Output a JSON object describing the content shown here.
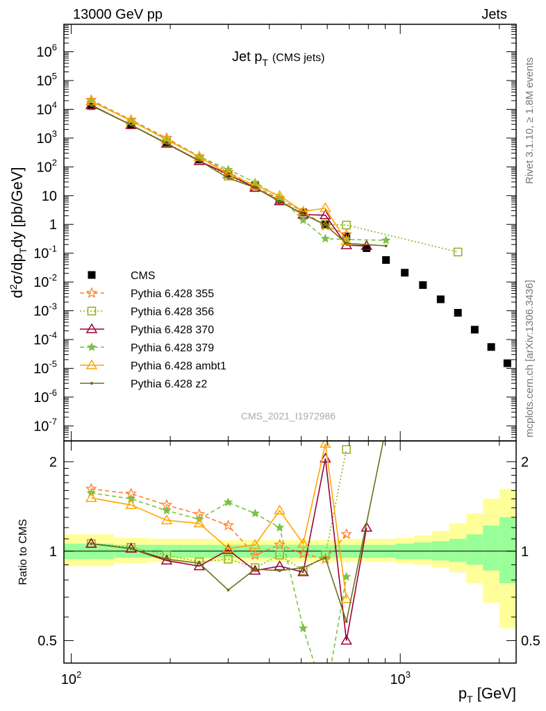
{
  "header": {
    "left": "13000 GeV pp",
    "right": "Jets",
    "title_main": "Jet p",
    "title_sub": "T",
    "title_suffix": "(CMS jets)"
  },
  "side_labels": {
    "top": "Rivet 3.1.10, ≥ 1.8M events",
    "bottom": "mcplots.cern.ch [arXiv:1306.3436]"
  },
  "watermark": "CMS_2021_I1972986",
  "chart_data": [
    {
      "panel": "main",
      "type": "scatter",
      "xscale": "log",
      "yscale": "log",
      "xlim": [
        95,
        2250
      ],
      "ylim": [
        3e-08,
        9000000.0
      ],
      "ylabel": "d²σ/dp_T dy [pb/GeV]",
      "yticks": [
        "10^6",
        "10^5",
        "10^4",
        "10^3",
        "10^2",
        "10",
        "1",
        "10^-1",
        "10^-2",
        "10^-3",
        "10^-4",
        "10^-5",
        "10^-6",
        "10^-7"
      ],
      "legend_position": "left",
      "series": [
        {
          "name": "CMS",
          "color": "#000000",
          "marker": "square",
          "x": [
            115,
            152,
            195,
            245,
            300,
            362,
            430,
            507,
            592,
            686,
            790,
            905,
            1032,
            1172,
            1327,
            1497,
            1684,
            1890,
            2116
          ],
          "y": [
            13000,
            2800,
            700,
            180,
            55,
            22,
            7.2,
            2.6,
            1.0,
            0.38,
            0.15,
            0.058,
            0.021,
            0.0078,
            0.0025,
            0.00085,
            0.00022,
            5.5e-05,
            1.5e-05
          ]
        },
        {
          "name": "Pythia 6.428 355",
          "color": "#ff7f27",
          "marker": "star-open",
          "dash": "dashed",
          "x": [
            115,
            152,
            195,
            245,
            300,
            362,
            430,
            507,
            592,
            686
          ],
          "y": [
            21000,
            4300,
            1000,
            230,
            66,
            21,
            7.7,
            2.8,
            0.9,
            0.45
          ]
        },
        {
          "name": "Pythia 6.428 356",
          "color": "#8fae1b",
          "marker": "square-open",
          "dash": "dotted",
          "x": [
            115,
            152,
            195,
            245,
            300,
            362,
            430,
            507,
            592,
            686,
            1497
          ],
          "y": [
            14000,
            2900,
            690,
            165,
            48,
            19,
            7.0,
            2.3,
            1.0,
            0.95,
            0.11
          ]
        },
        {
          "name": "Pythia 6.428 370",
          "color": "#990033",
          "marker": "triangle-open",
          "dash": "solid",
          "x": [
            115,
            152,
            195,
            245,
            300,
            362,
            430,
            507,
            592,
            686,
            790
          ],
          "y": [
            14000,
            2850,
            640,
            160,
            55,
            19,
            6.4,
            2.2,
            2.1,
            0.19,
            0.18
          ]
        },
        {
          "name": "Pythia 6.428 379",
          "color": "#7ac143",
          "marker": "star",
          "dash": "dashed",
          "x": [
            115,
            152,
            195,
            245,
            300,
            362,
            430,
            507,
            592,
            686,
            905
          ],
          "y": [
            20000,
            4100,
            920,
            230,
            80,
            29,
            8.7,
            1.4,
            0.32,
            0.3,
            0.28
          ]
        },
        {
          "name": "Pythia 6.428 ambt1",
          "color": "#ffa500",
          "marker": "triangle-open",
          "dash": "solid",
          "x": [
            115,
            152,
            195,
            245,
            300,
            362,
            430,
            507,
            592,
            686
          ],
          "y": [
            19000,
            4000,
            880,
            220,
            56,
            23,
            9.9,
            2.8,
            3.7,
            0.26
          ]
        },
        {
          "name": "Pythia 6.428 z2",
          "color": "#6b7016",
          "marker": "dot",
          "dash": "solid",
          "x": [
            115,
            152,
            195,
            245,
            300,
            362,
            430,
            507,
            592,
            686,
            905
          ],
          "y": [
            13500,
            2850,
            650,
            165,
            41,
            19,
            6.2,
            2.3,
            0.95,
            0.22,
            0.18
          ]
        }
      ]
    },
    {
      "panel": "ratio",
      "type": "line",
      "xscale": "log",
      "yscale": "log",
      "xlim": [
        95,
        2250
      ],
      "ylim": [
        0.42,
        2.35
      ],
      "xlabel": "p_T [GeV]",
      "ylabel": "Ratio to CMS",
      "xticks": [
        "10^2",
        "10^3"
      ],
      "yticks": [
        "0.5",
        "1",
        "2"
      ],
      "band": {
        "x_edges": [
          95,
          135,
          172,
          220,
          272,
          330,
          395,
          468,
          548,
          638,
          737,
          846,
          967,
          1101,
          1248,
          1410,
          1588,
          1784,
          2000,
          2250
        ],
        "inner_low": [
          0.94,
          0.95,
          0.95,
          0.95,
          0.95,
          0.95,
          0.95,
          0.95,
          0.95,
          0.95,
          0.95,
          0.95,
          0.94,
          0.94,
          0.93,
          0.92,
          0.9,
          0.86,
          0.78
        ],
        "inner_high": [
          1.06,
          1.05,
          1.05,
          1.05,
          1.05,
          1.05,
          1.05,
          1.05,
          1.05,
          1.05,
          1.05,
          1.05,
          1.06,
          1.07,
          1.08,
          1.1,
          1.14,
          1.22,
          1.3
        ],
        "outer_low": [
          0.89,
          0.91,
          0.92,
          0.92,
          0.92,
          0.92,
          0.92,
          0.92,
          0.92,
          0.92,
          0.92,
          0.92,
          0.91,
          0.9,
          0.88,
          0.85,
          0.78,
          0.67,
          0.55
        ],
        "outer_high": [
          1.14,
          1.11,
          1.1,
          1.1,
          1.09,
          1.09,
          1.09,
          1.09,
          1.09,
          1.1,
          1.1,
          1.1,
          1.11,
          1.13,
          1.17,
          1.24,
          1.34,
          1.5,
          1.62
        ]
      },
      "series": [
        {
          "name": "Pythia 6.428 355",
          "x": [
            115,
            152,
            195,
            245,
            300,
            362,
            430,
            507,
            592,
            686
          ],
          "y": [
            1.62,
            1.56,
            1.43,
            1.33,
            1.22,
            0.97,
            1.05,
            0.98,
            0.94,
            1.14
          ]
        },
        {
          "name": "Pythia 6.428 356",
          "x": [
            115,
            152,
            195,
            245,
            300,
            362,
            430,
            507,
            592,
            686
          ],
          "y": [
            1.06,
            1.03,
            0.97,
            0.92,
            0.94,
            0.88,
            0.97,
            0.86,
            0.97,
            2.2
          ]
        },
        {
          "name": "Pythia 6.428 370",
          "x": [
            115,
            152,
            195,
            245,
            300,
            362,
            430,
            507,
            592,
            686,
            790
          ],
          "y": [
            1.06,
            1.02,
            0.93,
            0.89,
            1.01,
            0.86,
            0.89,
            0.85,
            2.05,
            0.5,
            1.2
          ]
        },
        {
          "name": "Pythia 6.428 379",
          "x": [
            115,
            152,
            195,
            245,
            300,
            362,
            430,
            507,
            592,
            686
          ],
          "y": [
            1.57,
            1.5,
            1.37,
            1.28,
            1.46,
            1.34,
            1.2,
            0.55,
            0.32,
            0.82
          ]
        },
        {
          "name": "Pythia 6.428 ambt1",
          "x": [
            115,
            152,
            195,
            245,
            300,
            362,
            430,
            507,
            592,
            686
          ],
          "y": [
            1.51,
            1.43,
            1.27,
            1.24,
            1.02,
            1.05,
            1.37,
            1.06,
            2.3,
            0.69
          ]
        },
        {
          "name": "Pythia 6.428 z2",
          "x": [
            115,
            152,
            195,
            245,
            300,
            362,
            430,
            507,
            592,
            686,
            905
          ],
          "y": [
            1.06,
            1.02,
            0.94,
            0.91,
            0.74,
            0.87,
            0.86,
            0.88,
            0.95,
            0.58,
            2.6
          ]
        }
      ]
    }
  ]
}
